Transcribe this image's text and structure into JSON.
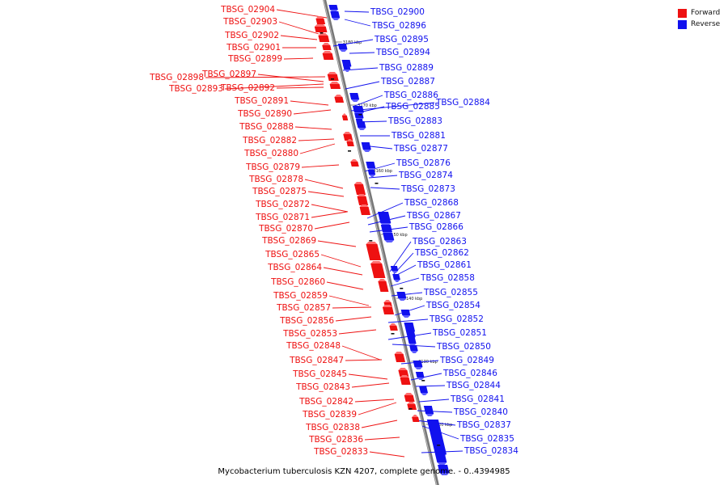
{
  "colors": {
    "forward": "#ee1111",
    "reverse": "#1111ee",
    "backbone": "#888888"
  },
  "legend": [
    {
      "label": "Forward",
      "color": "#ee1111"
    },
    {
      "label": "Reverse",
      "color": "#1111ee"
    }
  ],
  "caption": "Mycobacterium tuberculosis KZN 4207, complete genome. - 0..4394985",
  "ruler_labels": [
    "3180 kbp",
    "3170 kbp",
    "3160 kbp",
    "3150 kbp",
    "3140 kbp",
    "3130 kbp",
    "3120 kbp"
  ],
  "forward_genes": [
    "TBSG_02904",
    "TBSG_02903",
    "TBSG_02902",
    "TBSG_02901",
    "TBSG_02899",
    "TBSG_02898",
    "TBSG_02897",
    "TBSG_02893",
    "TBSG_02892",
    "TBSG_02891",
    "TBSG_02890",
    "TBSG_02888",
    "TBSG_02882",
    "TBSG_02880",
    "TBSG_02879",
    "TBSG_02878",
    "TBSG_02875",
    "TBSG_02872",
    "TBSG_02871",
    "TBSG_02870",
    "TBSG_02869",
    "TBSG_02865",
    "TBSG_02864",
    "TBSG_02860",
    "TBSG_02859",
    "TBSG_02857",
    "TBSG_02856",
    "TBSG_02853",
    "TBSG_02848",
    "TBSG_02847",
    "TBSG_02845",
    "TBSG_02843",
    "TBSG_02842",
    "TBSG_02839",
    "TBSG_02838",
    "TBSG_02836",
    "TBSG_02833"
  ],
  "reverse_genes": [
    "TBSG_02900",
    "TBSG_02896",
    "TBSG_02895",
    "TBSG_02894",
    "TBSG_02889",
    "TBSG_02887",
    "TBSG_02886",
    "TBSG_02885",
    "TBSG_02884",
    "TBSG_02883",
    "TBSG_02881",
    "TBSG_02877",
    "TBSG_02876",
    "TBSG_02874",
    "TBSG_02873",
    "TBSG_02868",
    "TBSG_02867",
    "TBSG_02866",
    "TBSG_02863",
    "TBSG_02862",
    "TBSG_02861",
    "TBSG_02858",
    "TBSG_02855",
    "TBSG_02854",
    "TBSG_02852",
    "TBSG_02851",
    "TBSG_02850",
    "TBSG_02849",
    "TBSG_02846",
    "TBSG_02844",
    "TBSG_02841",
    "TBSG_02840",
    "TBSG_02837",
    "TBSG_02835",
    "TBSG_02834"
  ]
}
